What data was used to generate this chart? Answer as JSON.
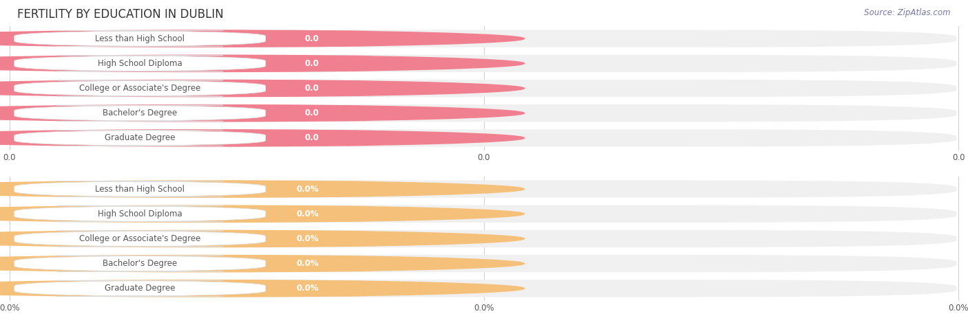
{
  "title": "FERTILITY BY EDUCATION IN DUBLIN",
  "source": "Source: ZipAtlas.com",
  "categories": [
    "Less than High School",
    "High School Diploma",
    "College or Associate's Degree",
    "Bachelor's Degree",
    "Graduate Degree"
  ],
  "values_top": [
    0.0,
    0.0,
    0.0,
    0.0,
    0.0
  ],
  "values_bottom": [
    0.0,
    0.0,
    0.0,
    0.0,
    0.0
  ],
  "bar_color_top": "#F08090",
  "bar_bg_color_top": "#F0F0F0",
  "bar_color_bottom": "#F5C07A",
  "bar_bg_color_bottom": "#F0F0F0",
  "title_fontsize": 12,
  "label_fontsize": 8.5,
  "tick_fontsize": 8.5,
  "source_fontsize": 8.5,
  "bg_color": "#FFFFFF",
  "text_color": "#555555",
  "title_color": "#333333",
  "xtick_labels_top": [
    "0.0",
    "0.0",
    "0.0"
  ],
  "xtick_labels_bottom": [
    "0.0%",
    "0.0%",
    "0.0%"
  ]
}
